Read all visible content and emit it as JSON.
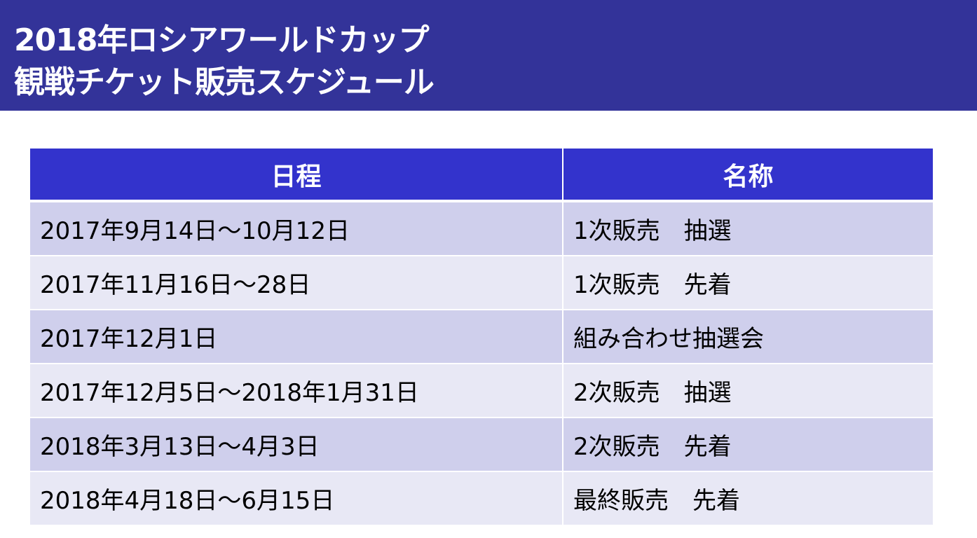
{
  "header": {
    "title_line1": "2018年ロシアワールドカップ",
    "title_line2": "観戦チケット販売スケジュール"
  },
  "table": {
    "columns": [
      "日程",
      "名称"
    ],
    "rows": [
      [
        "2017年9月14日～10月12日",
        "1次販売　抽選"
      ],
      [
        "2017年11月16日～28日",
        "1次販売　先着"
      ],
      [
        "2017年12月1日",
        "組み合わせ抽選会"
      ],
      [
        "2017年12月5日～2018年1月31日",
        "2次販売　抽選"
      ],
      [
        "2018年3月13日～4月3日",
        "2次販売　先着"
      ],
      [
        "2018年4月18日～6月15日",
        "最終販売　先着"
      ]
    ]
  },
  "colors": {
    "banner": "#333399",
    "table_header": "#3333cc",
    "row_odd": "#cfcfec",
    "row_even": "#e8e8f5"
  }
}
